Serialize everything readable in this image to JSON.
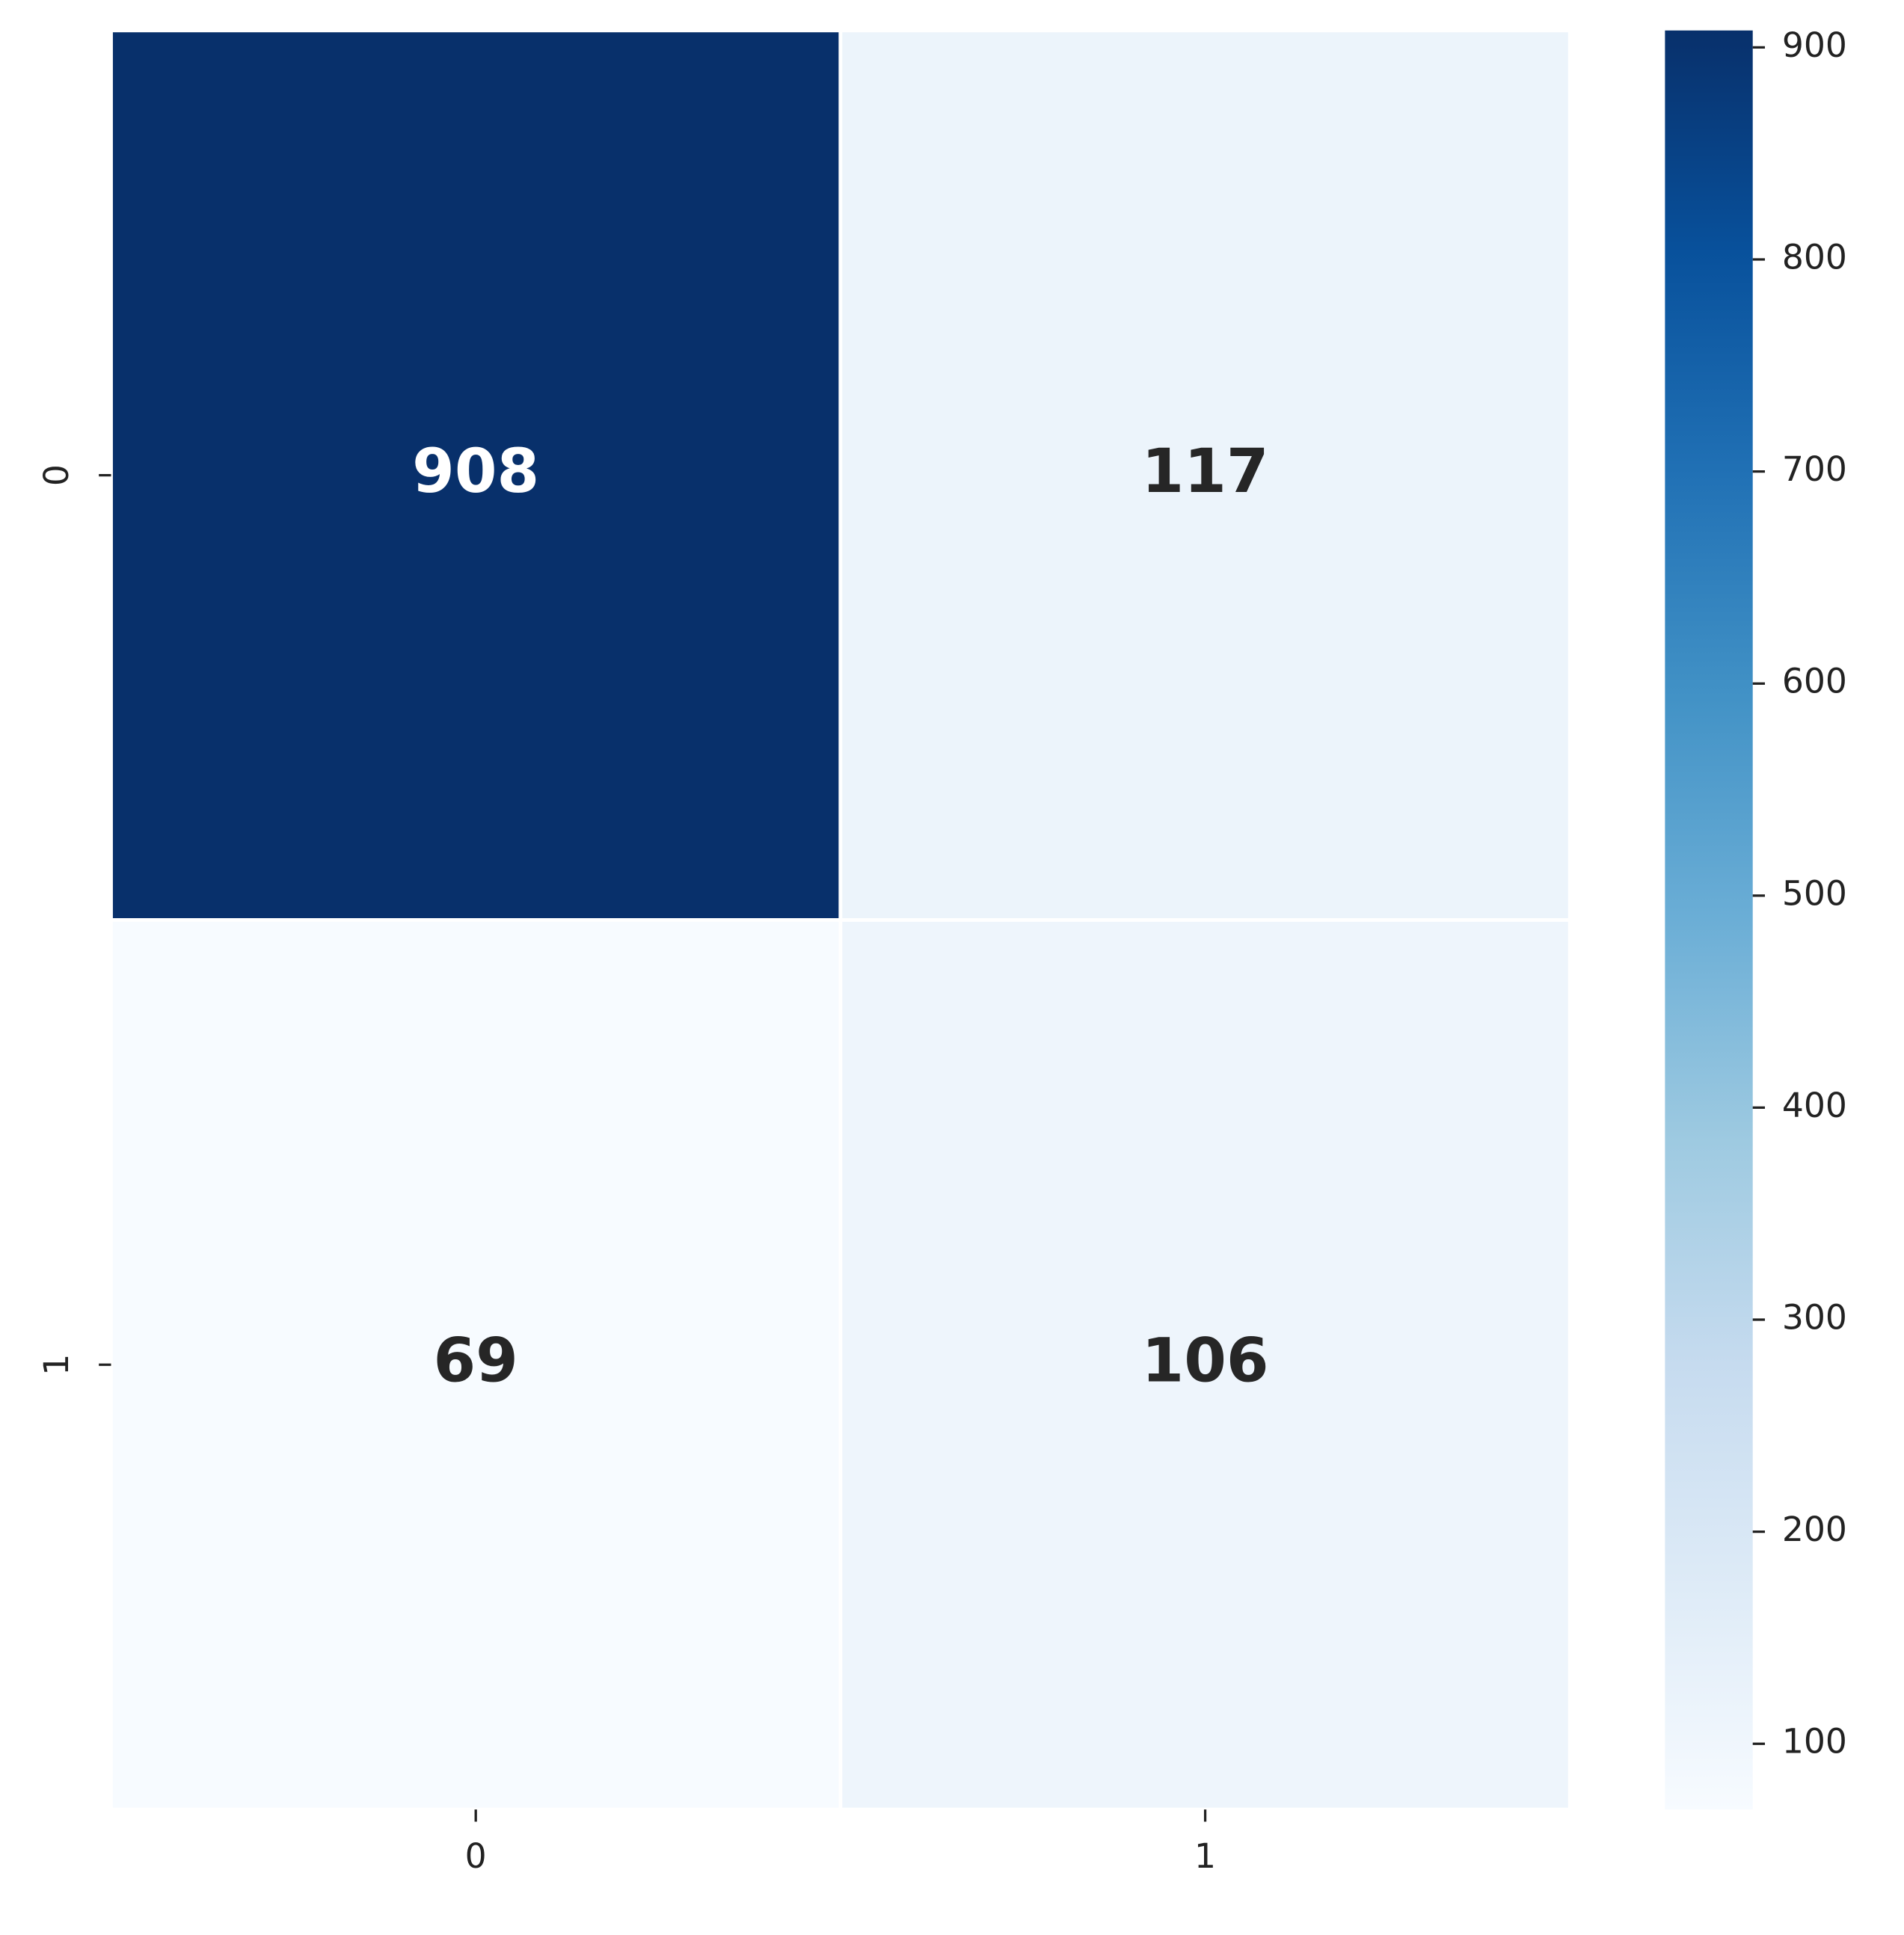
{
  "chart_data": {
    "type": "heatmap",
    "x_categories": [
      "0",
      "1"
    ],
    "y_categories": [
      "0",
      "1"
    ],
    "values": [
      [
        908,
        117
      ],
      [
        69,
        106
      ]
    ],
    "colormap": "Blues",
    "clim": [
      69,
      908
    ],
    "colorbar_ticks": [
      100,
      200,
      300,
      400,
      500,
      600,
      700,
      800,
      900
    ]
  }
}
